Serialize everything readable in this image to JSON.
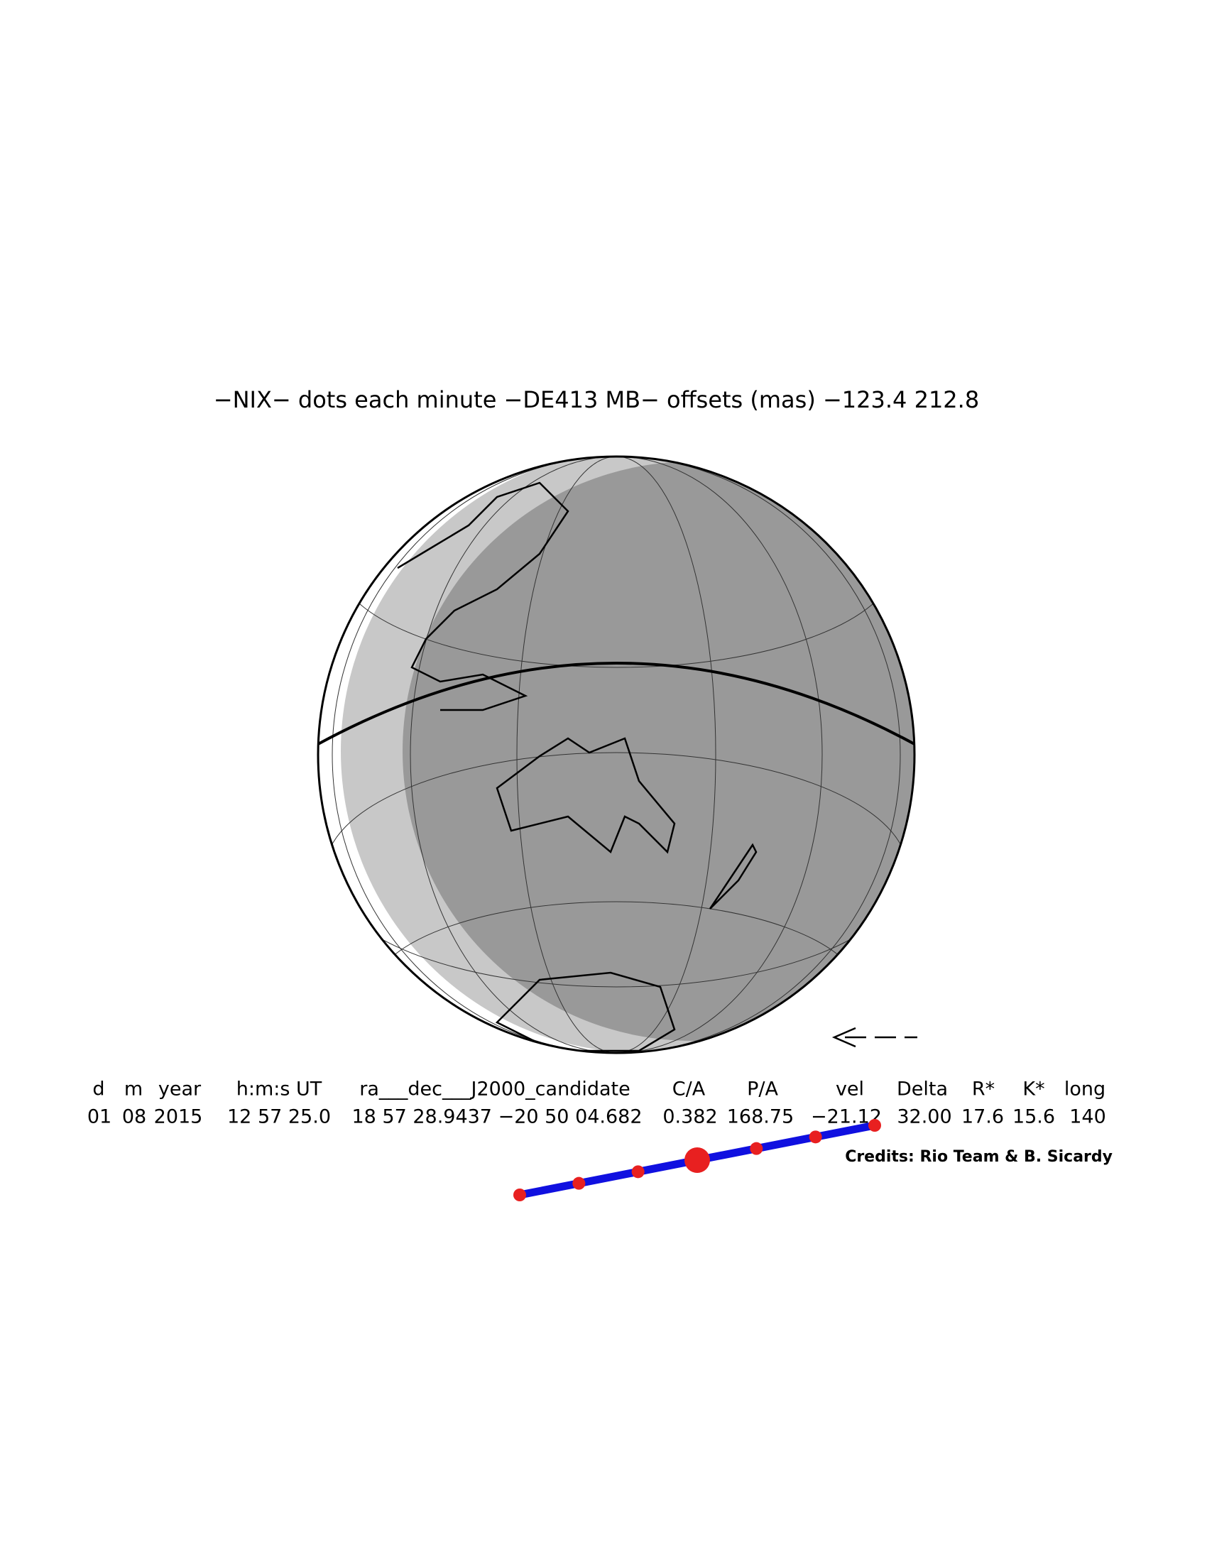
{
  "title": "−NIX− dots each minute −DE413 MB− offsets (mas) −123.4   212.8",
  "table": {
    "headers": [
      "d",
      "m",
      "year",
      "h:m:s UT",
      "ra___dec___J2000_candidate",
      "C/A",
      "P/A",
      "vel",
      "Delta",
      "R*",
      "K*",
      "long"
    ],
    "values": [
      "01",
      "08",
      "2015",
      "12 57 25.0",
      "18 57 28.9437 −20 50 04.682",
      "0.382",
      "168.75",
      "−21.12",
      "32.00",
      "17.6",
      "15.6",
      "140"
    ]
  },
  "credits": "Credits: Rio Team & B. Sicardy"
}
